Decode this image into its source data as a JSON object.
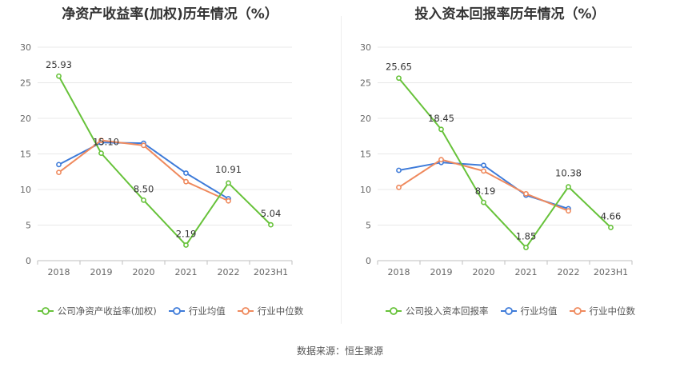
{
  "source_text": "数据来源：恒生聚源",
  "chart_data": [
    {
      "type": "line",
      "title": "净资产收益率(加权)历年情况（%）",
      "categories": [
        "2018",
        "2019",
        "2020",
        "2021",
        "2022",
        "2023H1"
      ],
      "ylim": [
        0,
        30
      ],
      "yticks": [
        0,
        5,
        10,
        15,
        20,
        25,
        30
      ],
      "grid": true,
      "legend_position": "bottom",
      "series": [
        {
          "name": "公司净资产收益率(加权)",
          "color": "#67c23a",
          "values": [
            25.93,
            15.1,
            8.5,
            2.19,
            10.91,
            5.04
          ],
          "labels": [
            "25.93",
            "15.10",
            "8.50",
            "2.19",
            "10.91",
            "5.04"
          ]
        },
        {
          "name": "行业均值",
          "color": "#3e7bd9",
          "values": [
            13.5,
            16.6,
            16.5,
            12.3,
            8.7,
            null
          ]
        },
        {
          "name": "行业中位数",
          "color": "#ef8a5e",
          "values": [
            12.4,
            16.9,
            16.2,
            11.1,
            8.4,
            null
          ]
        }
      ]
    },
    {
      "type": "line",
      "title": "投入资本回报率历年情况（%）",
      "categories": [
        "2018",
        "2019",
        "2020",
        "2021",
        "2022",
        "2023H1"
      ],
      "ylim": [
        0,
        30
      ],
      "yticks": [
        0,
        5,
        10,
        15,
        20,
        25,
        30
      ],
      "grid": true,
      "legend_position": "bottom",
      "series": [
        {
          "name": "公司投入资本回报率",
          "color": "#67c23a",
          "values": [
            25.65,
            18.45,
            8.19,
            1.85,
            10.38,
            4.66
          ],
          "labels": [
            "25.65",
            "18.45",
            "8.19",
            "1.85",
            "10.38",
            "4.66"
          ]
        },
        {
          "name": "行业均值",
          "color": "#3e7bd9",
          "values": [
            12.7,
            13.8,
            13.4,
            9.2,
            7.3,
            null
          ]
        },
        {
          "name": "行业中位数",
          "color": "#ef8a5e",
          "values": [
            10.3,
            14.2,
            12.6,
            9.4,
            7.0,
            null
          ]
        }
      ]
    }
  ]
}
